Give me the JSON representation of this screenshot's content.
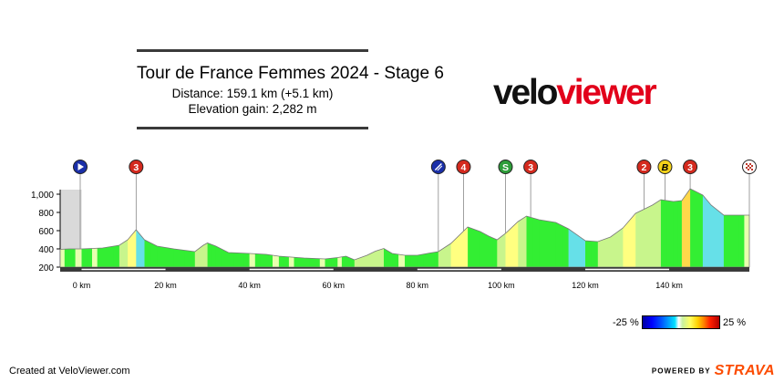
{
  "title": {
    "main": "Tour de France Femmes 2024 - Stage 6",
    "distance": "Distance: 159.1 km (+5.1 km)",
    "elevation": "Elevation gain: 2,282 m"
  },
  "logo": {
    "part1": "velo",
    "part2": "viewer"
  },
  "footer": {
    "created": "Created at VeloViewer.com",
    "powered": "POWERED BY",
    "strava": "STRAVA"
  },
  "legend": {
    "min_label": "-25 %",
    "max_label": "25 %"
  },
  "colors": {
    "profile_green": "#33ee33",
    "profile_yellow": "#ffff80",
    "profile_cyan": "#66e0e8",
    "climb_red": "#d42a1e",
    "start_blue": "#1a2fa8",
    "sprint_green": "#2e9e3a",
    "bonus_yellow": "#f4d21a"
  },
  "chart_data": {
    "type": "area",
    "xlabel": "",
    "ylabel": "",
    "x_unit": "km",
    "xlim": [
      -5.1,
      159.1
    ],
    "ylim": [
      200,
      1050
    ],
    "x_ticks": [
      {
        "value": 0,
        "label": "0 km"
      },
      {
        "value": 20,
        "label": "20 km"
      },
      {
        "value": 40,
        "label": "40 km"
      },
      {
        "value": 60,
        "label": "60 km"
      },
      {
        "value": 80,
        "label": "80 km"
      },
      {
        "value": 100,
        "label": "100 km"
      },
      {
        "value": 120,
        "label": "120 km"
      },
      {
        "value": 140,
        "label": "140 km"
      }
    ],
    "y_ticks": [
      {
        "value": 200,
        "label": "200"
      },
      {
        "value": 400,
        "label": "400"
      },
      {
        "value": 600,
        "label": "600"
      },
      {
        "value": 800,
        "label": "800"
      },
      {
        "value": 1000,
        "label": "1,000"
      }
    ],
    "neutral_zone": [
      -5.1,
      0
    ],
    "profile": [
      {
        "x": -5.1,
        "y": 395
      },
      {
        "x": -3,
        "y": 400
      },
      {
        "x": 0,
        "y": 400
      },
      {
        "x": 5,
        "y": 410
      },
      {
        "x": 9,
        "y": 440
      },
      {
        "x": 11,
        "y": 500
      },
      {
        "x": 13,
        "y": 610
      },
      {
        "x": 15,
        "y": 500
      },
      {
        "x": 18,
        "y": 430
      },
      {
        "x": 22,
        "y": 400
      },
      {
        "x": 27,
        "y": 370
      },
      {
        "x": 29,
        "y": 440
      },
      {
        "x": 30,
        "y": 465
      },
      {
        "x": 32,
        "y": 430
      },
      {
        "x": 35,
        "y": 360
      },
      {
        "x": 40,
        "y": 350
      },
      {
        "x": 44,
        "y": 340
      },
      {
        "x": 47,
        "y": 320
      },
      {
        "x": 53,
        "y": 300
      },
      {
        "x": 58,
        "y": 290
      },
      {
        "x": 61,
        "y": 305
      },
      {
        "x": 63,
        "y": 320
      },
      {
        "x": 65,
        "y": 280
      },
      {
        "x": 68,
        "y": 330
      },
      {
        "x": 70,
        "y": 375
      },
      {
        "x": 72,
        "y": 405
      },
      {
        "x": 74,
        "y": 350
      },
      {
        "x": 77,
        "y": 330
      },
      {
        "x": 80,
        "y": 330
      },
      {
        "x": 83,
        "y": 355
      },
      {
        "x": 85,
        "y": 370
      },
      {
        "x": 88,
        "y": 460
      },
      {
        "x": 92,
        "y": 640
      },
      {
        "x": 95,
        "y": 590
      },
      {
        "x": 97,
        "y": 540
      },
      {
        "x": 99,
        "y": 500
      },
      {
        "x": 101,
        "y": 570
      },
      {
        "x": 104,
        "y": 700
      },
      {
        "x": 106,
        "y": 760
      },
      {
        "x": 109,
        "y": 720
      },
      {
        "x": 113,
        "y": 690
      },
      {
        "x": 116,
        "y": 620
      },
      {
        "x": 120,
        "y": 490
      },
      {
        "x": 123,
        "y": 480
      },
      {
        "x": 126,
        "y": 530
      },
      {
        "x": 129,
        "y": 630
      },
      {
        "x": 132,
        "y": 790
      },
      {
        "x": 136,
        "y": 880
      },
      {
        "x": 138,
        "y": 940
      },
      {
        "x": 141,
        "y": 920
      },
      {
        "x": 143,
        "y": 930
      },
      {
        "x": 145,
        "y": 1060
      },
      {
        "x": 148,
        "y": 990
      },
      {
        "x": 150,
        "y": 880
      },
      {
        "x": 153,
        "y": 770
      },
      {
        "x": 159.1,
        "y": 770
      }
    ],
    "markers": [
      {
        "km": -5.1,
        "type": "start",
        "label": ""
      },
      {
        "km": 13,
        "type": "climb",
        "label": "3"
      },
      {
        "km": 85,
        "type": "flamme",
        "label": ""
      },
      {
        "km": 91,
        "type": "climb",
        "label": "4"
      },
      {
        "km": 101,
        "type": "sprint",
        "label": "S"
      },
      {
        "km": 107,
        "type": "climb",
        "label": "3"
      },
      {
        "km": 134,
        "type": "climb",
        "label": "2"
      },
      {
        "km": 139,
        "type": "bonus",
        "label": "B"
      },
      {
        "km": 145,
        "type": "climb",
        "label": "3"
      },
      {
        "km": 159.1,
        "type": "finish",
        "label": ""
      }
    ],
    "legend": {
      "min": -25,
      "max": 25,
      "unit": "%"
    }
  }
}
